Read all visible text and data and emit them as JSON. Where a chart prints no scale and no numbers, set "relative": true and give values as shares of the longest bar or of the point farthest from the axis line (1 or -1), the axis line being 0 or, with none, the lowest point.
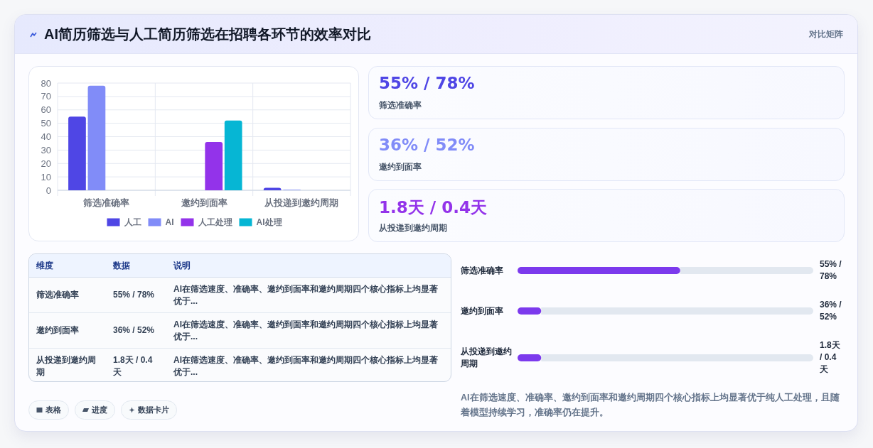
{
  "chart_data": [
    {
      "type": "other",
      "title": "AI简历筛选与人工简历筛选在招聘各环节的效率对比",
      "subtitle": "对比矩阵"
    },
    {
      "type": "bar",
      "categories": [
        "筛选准确率",
        "邀约到面率",
        "从投递到邀约周期"
      ],
      "series": [
        {
          "name": "人工",
          "color": "#4f46e5",
          "values": [
            55,
            null,
            1.8
          ]
        },
        {
          "name": "AI",
          "color": "#818cf8",
          "values": [
            78,
            null,
            0.4
          ]
        },
        {
          "name": "人工处理",
          "color": "#9333ea",
          "values": [
            null,
            36,
            null
          ]
        },
        {
          "name": "AI处理",
          "color": "#06b6d4",
          "values": [
            null,
            52,
            null
          ]
        }
      ],
      "ylim": [
        0,
        80
      ],
      "yticks": [
        0,
        10,
        20,
        30,
        40,
        50,
        60,
        70,
        80
      ],
      "grid": true,
      "legend": "bottom"
    },
    {
      "type": "other",
      "annotations": [
        "55% / 78%",
        "筛选准确率",
        "36% / 52%",
        "邀约到面率",
        "1.8天 / 0.4天",
        "从投递到邀约周期"
      ],
      "colors": [
        "#4f46e5",
        "#818cf8",
        "#9333ea"
      ]
    },
    {
      "type": "other",
      "annotations": [
        "维度",
        "数据",
        "说明",
        "筛选准确率",
        "55% / 78%",
        "AI在筛选速度、准确率、邀约到面率和邀约周期四个核心指标上均显著优于...",
        "邀约到面率",
        "36% / 52%",
        "AI在筛选速度、准确率、邀约到面率和邀约周期四个核心指标上均显著优于...",
        "从投递到邀约周期",
        "1.8天 / 0.4天",
        "AI在筛选速度、准确率、邀约到面率和邀约周期四个核心指标上均显著优于..."
      ]
    },
    {
      "type": "bar",
      "orientation": "horizontal",
      "stacked": true,
      "relative": true,
      "categories": [
        "筛选准确率",
        "邀约到面率",
        "从投递到邀约周期"
      ],
      "series": [
        {
          "color": "#7c3aed",
          "values": [
            0.55,
            0.08,
            0.08
          ]
        },
        {
          "color": "#e2e8f0",
          "values": [
            0.45,
            0.92,
            0.92
          ]
        }
      ],
      "value_labels": [
        "55% / 78%",
        "36% / 52%",
        "1.8天 / 0.4天"
      ],
      "annotations": [
        "AI在筛选速度、准确率、邀约到面率和邀约周期四个核心指标上均显著优于纯人工处理，且随着模型持续学习，准确率仍在提升。"
      ]
    },
    {
      "type": "other",
      "annotations": [
        "表格",
        "进度",
        "数据卡片"
      ]
    }
  ]
}
